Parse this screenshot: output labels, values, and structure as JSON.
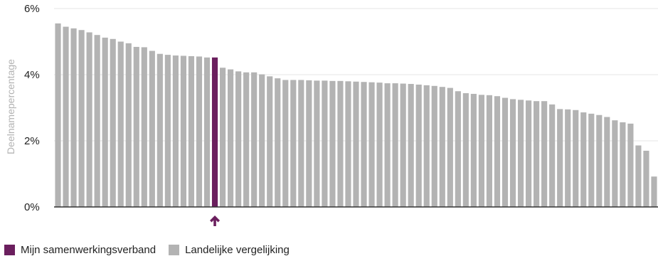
{
  "chart_data": {
    "type": "bar",
    "ylabel": "Deelnamepercentage",
    "ylim": [
      0,
      6
    ],
    "yticks": [
      0,
      2,
      4,
      6
    ],
    "ytick_labels": [
      "0%",
      "2%",
      "4%",
      "6%"
    ],
    "grid": true,
    "legend_position": "bottom-left",
    "highlight_index": 20,
    "colors": {
      "highlight": "#6b1f5e",
      "comparison": "#b3b3b3",
      "axis": "#333333",
      "grid": "#e6e6e6"
    },
    "series": [
      {
        "name": "Mijn samenwerkingsverband",
        "color": "#6b1f5e"
      },
      {
        "name": "Landelijke vergelijking",
        "color": "#b3b3b3"
      }
    ],
    "values": [
      5.55,
      5.45,
      5.4,
      5.35,
      5.28,
      5.2,
      5.12,
      5.08,
      5.0,
      4.95,
      4.84,
      4.83,
      4.72,
      4.63,
      4.6,
      4.58,
      4.57,
      4.56,
      4.55,
      4.52,
      4.52,
      4.21,
      4.16,
      4.1,
      4.07,
      4.07,
      4.01,
      3.95,
      3.89,
      3.84,
      3.84,
      3.84,
      3.83,
      3.82,
      3.82,
      3.81,
      3.81,
      3.8,
      3.79,
      3.78,
      3.77,
      3.76,
      3.74,
      3.74,
      3.73,
      3.72,
      3.7,
      3.68,
      3.66,
      3.63,
      3.6,
      3.5,
      3.44,
      3.42,
      3.39,
      3.38,
      3.35,
      3.3,
      3.26,
      3.24,
      3.22,
      3.2,
      3.2,
      3.1,
      2.96,
      2.95,
      2.93,
      2.86,
      2.82,
      2.78,
      2.72,
      2.62,
      2.56,
      2.52,
      1.86,
      1.7,
      0.92
    ],
    "marker_icon": "arrow-up-icon"
  }
}
